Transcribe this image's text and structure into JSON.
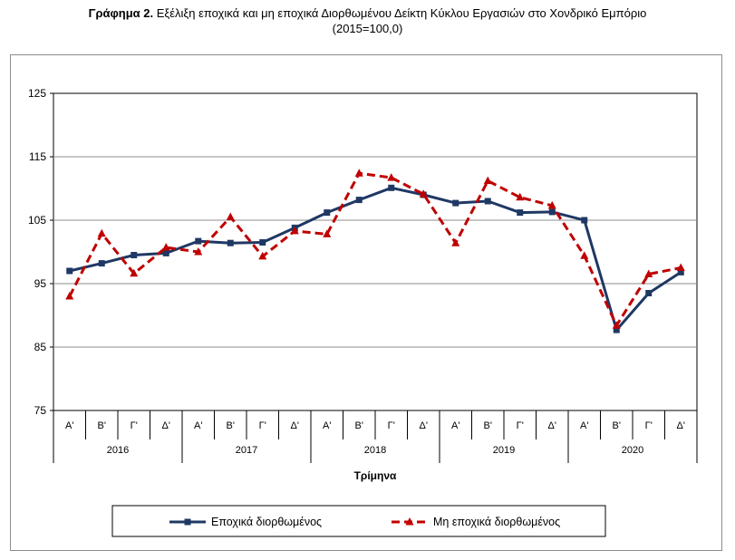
{
  "title": {
    "bold": "Γράφημα 2.",
    "text": "Εξέλιξη εποχικά και μη εποχικά Διορθωμένου Δείκτη Κύκλου Εργασιών στο Χονδρικό Εμπόριο",
    "line2": "(2015=100,0)"
  },
  "chart_data": {
    "type": "line",
    "xlabel": "Τρίμηνα",
    "ylabel": "",
    "ylim": [
      75,
      125
    ],
    "yticks": [
      75,
      85,
      95,
      105,
      115,
      125
    ],
    "grid": "horizontal",
    "legend_position": "bottom",
    "quarters": [
      "Α'",
      "Β'",
      "Γ'",
      "Δ'",
      "Α'",
      "Β'",
      "Γ'",
      "Δ'",
      "Α'",
      "Β'",
      "Γ'",
      "Δ'",
      "Α'",
      "Β'",
      "Γ'",
      "Δ'",
      "Α'",
      "Β'",
      "Γ'",
      "Δ'"
    ],
    "years": [
      "2016",
      "2017",
      "2018",
      "2019",
      "2020"
    ],
    "series": [
      {
        "name": "Εποχικά διορθωμένος",
        "color": "#1f3864",
        "marker": "square",
        "dash": "solid",
        "values": [
          97.0,
          98.2,
          99.5,
          99.8,
          101.7,
          101.4,
          101.5,
          103.8,
          106.2,
          108.2,
          110.1,
          109.0,
          107.7,
          108.0,
          106.2,
          106.3,
          105.0,
          87.7,
          93.5,
          96.8
        ]
      },
      {
        "name": "Μη εποχικά διορθωμένος",
        "color": "#c00000",
        "marker": "triangle",
        "dash": "dashed",
        "values": [
          93.0,
          102.9,
          96.6,
          100.7,
          100.0,
          105.5,
          99.3,
          103.3,
          102.8,
          112.4,
          111.7,
          109.1,
          101.4,
          111.2,
          108.6,
          107.3,
          99.4,
          88.4,
          96.5,
          97.5
        ]
      }
    ]
  }
}
